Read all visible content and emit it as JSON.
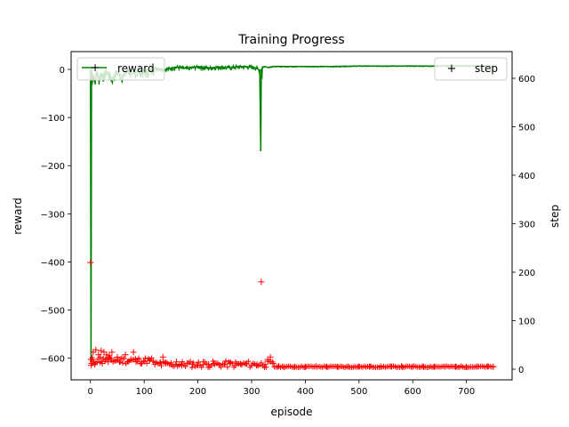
{
  "chart_data": {
    "type": "line",
    "title": "Training Progress",
    "xlabel": "episode",
    "ylabel_left": "reward",
    "ylabel_right": "step",
    "xlim": [
      -36,
      785
    ],
    "ylim_left": [
      -645,
      37
    ],
    "ylim_right": [
      -22,
      655
    ],
    "xticks": [
      0,
      100,
      200,
      300,
      400,
      500,
      600,
      700
    ],
    "yticks_left": [
      0,
      -100,
      -200,
      -300,
      -400,
      -500,
      -600
    ],
    "yticks_right": [
      0,
      100,
      200,
      300,
      400,
      500,
      600
    ],
    "grid": false,
    "colors": {
      "reward": "#008000",
      "step": "#ff0000"
    },
    "series": [
      {
        "name": "reward",
        "axis": "left",
        "style": "line",
        "episodes": 750,
        "x": [
          0,
          1,
          2,
          3,
          5,
          8,
          12,
          16,
          20,
          25,
          30,
          40,
          50,
          60,
          70,
          80,
          90,
          100,
          120,
          140,
          160,
          180,
          200,
          220,
          240,
          260,
          280,
          300,
          310,
          315,
          317,
          318,
          319,
          320,
          325,
          330,
          340,
          360,
          400,
          450,
          500,
          550,
          600,
          650,
          700,
          750
        ],
        "y": [
          0,
          -610,
          5,
          -30,
          -10,
          -25,
          -5,
          -20,
          -8,
          -15,
          -3,
          -20,
          -5,
          -15,
          0,
          -10,
          -2,
          -8,
          3,
          0,
          5,
          2,
          6,
          3,
          5,
          4,
          6,
          5,
          3,
          -2,
          -170,
          0,
          -20,
          5,
          6,
          4,
          6,
          6,
          6,
          6,
          7,
          7,
          7,
          7,
          7,
          7
        ]
      },
      {
        "name": "step",
        "axis": "right",
        "style": "markers",
        "marker": "+",
        "x": [
          0,
          1,
          2,
          3,
          4,
          5,
          8,
          10,
          12,
          15,
          18,
          20,
          22,
          25,
          28,
          30,
          33,
          35,
          38,
          40,
          45,
          50,
          55,
          60,
          65,
          70,
          75,
          80,
          85,
          90,
          95,
          100,
          110,
          120,
          130,
          135,
          140,
          150,
          160,
          170,
          180,
          190,
          200,
          210,
          220,
          230,
          240,
          250,
          260,
          270,
          280,
          290,
          300,
          310,
          318,
          325,
          330,
          335,
          340,
          350,
          360,
          380,
          400,
          420,
          440,
          460,
          480,
          500,
          520,
          540,
          560,
          580,
          600,
          620,
          640,
          660,
          680,
          700,
          720,
          740,
          750
        ],
        "y": [
          220,
          8,
          12,
          600,
          20,
          35,
          10,
          40,
          15,
          30,
          25,
          38,
          12,
          35,
          20,
          30,
          15,
          28,
          22,
          35,
          18,
          25,
          15,
          22,
          30,
          15,
          20,
          35,
          15,
          20,
          12,
          15,
          18,
          10,
          14,
          25,
          12,
          10,
          15,
          8,
          12,
          10,
          8,
          15,
          10,
          12,
          8,
          10,
          12,
          8,
          10,
          12,
          8,
          10,
          180,
          10,
          20,
          25,
          12,
          6,
          5,
          5,
          5,
          6,
          5,
          5,
          5,
          5,
          5,
          5,
          5,
          5,
          5,
          5,
          5,
          5,
          5,
          5,
          5,
          5,
          5
        ]
      }
    ],
    "legends": [
      {
        "label": "reward",
        "placement": "upper left"
      },
      {
        "label": "step",
        "placement": "upper right"
      }
    ]
  }
}
